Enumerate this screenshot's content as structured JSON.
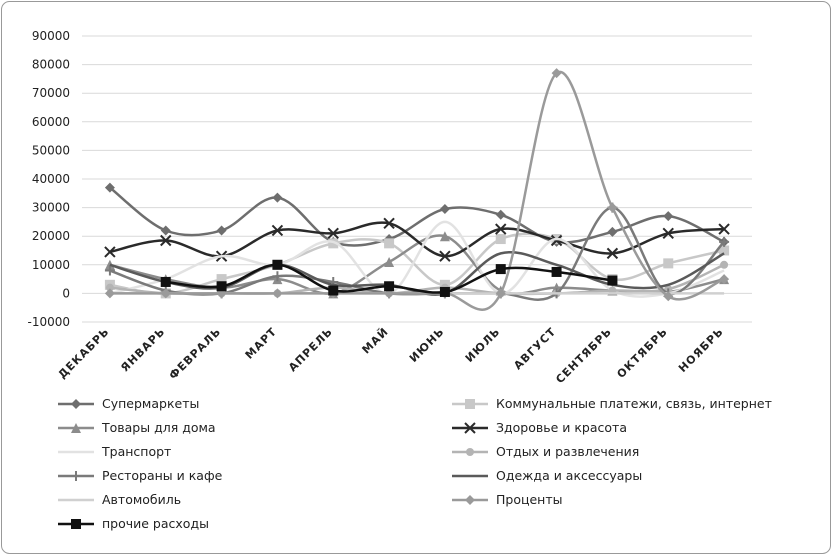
{
  "chart_data": {
    "type": "line",
    "categories": [
      "ДЕКАБРЬ",
      "ЯНВАРЬ",
      "ФЕВРАЛЬ",
      "МАРТ",
      "АПРЕЛЬ",
      "МАЙ",
      "ИЮНЬ",
      "ИЮЛЬ",
      "АВГУСТ",
      "СЕНТЯБРЬ",
      "ОКТЯБРЬ",
      "НОЯБРЬ"
    ],
    "ylim": [
      -10000,
      90000
    ],
    "yticks": [
      -10000,
      0,
      10000,
      20000,
      30000,
      40000,
      50000,
      60000,
      70000,
      80000,
      90000
    ],
    "grid": true,
    "series": [
      {
        "name": "Супермаркеты",
        "color": "#6e6e6e",
        "marker": "diamond",
        "values": [
          37000,
          22000,
          22000,
          33500,
          18000,
          19000,
          29500,
          27500,
          18000,
          21500,
          27000,
          18000
        ]
      },
      {
        "name": "Коммунальные платежи, связь, интернет",
        "color": "#c8c8c8",
        "marker": "square",
        "values": [
          3000,
          0,
          5000,
          10000,
          17500,
          17500,
          3000,
          19000,
          19000,
          5000,
          10500,
          15000
        ]
      },
      {
        "name": "Товары для дома",
        "color": "#8c8c8c",
        "marker": "triangle",
        "values": [
          10000,
          5000,
          2000,
          5000,
          0,
          11000,
          20000,
          1000,
          2000,
          1000,
          500,
          5000
        ]
      },
      {
        "name": "Здоровье и красота",
        "color": "#2a2a2a",
        "marker": "x",
        "values": [
          14500,
          18500,
          13000,
          22000,
          21000,
          24500,
          13000,
          22500,
          18500,
          14000,
          21000,
          22500
        ]
      },
      {
        "name": "Транспорт",
        "color": "#e2e2e2",
        "marker": "none",
        "values": [
          0,
          5000,
          13000,
          10000,
          18000,
          0,
          25000,
          0,
          19000,
          1000,
          0,
          8000
        ]
      },
      {
        "name": "Отдых и развлечения",
        "color": "#b4b4b4",
        "marker": "circle",
        "values": [
          2000,
          0,
          0,
          0,
          2000,
          0,
          2000,
          0,
          0,
          1000,
          1500,
          10000
        ]
      },
      {
        "name": "Рестораны и кафе",
        "color": "#7a7a7a",
        "marker": "plus",
        "values": [
          8000,
          1000,
          0,
          6000,
          4000,
          0,
          0,
          0,
          0,
          30000,
          0,
          18000
        ]
      },
      {
        "name": "Одежда и аксессуары",
        "color": "#5a5a5a",
        "marker": "none",
        "values": [
          10000,
          4000,
          2000,
          10000,
          3000,
          3000,
          0,
          14000,
          10000,
          3000,
          3000,
          14000
        ]
      },
      {
        "name": "Автомобиль",
        "color": "#d0d0d0",
        "marker": "none",
        "values": [
          0,
          0,
          0,
          0,
          0,
          0,
          0,
          0,
          0,
          0,
          0,
          0
        ]
      },
      {
        "name": "Проценты",
        "color": "#9a9a9a",
        "marker": "diamond",
        "values": [
          0,
          0,
          0,
          0,
          0,
          0,
          0,
          0,
          77000,
          30000,
          -1000,
          5000
        ]
      },
      {
        "name": "прочие расходы",
        "color": "#111111",
        "marker": "square",
        "values": [
          null,
          4000,
          2500,
          10000,
          1000,
          2500,
          500,
          8500,
          7500,
          4500,
          null,
          null
        ]
      }
    ]
  }
}
